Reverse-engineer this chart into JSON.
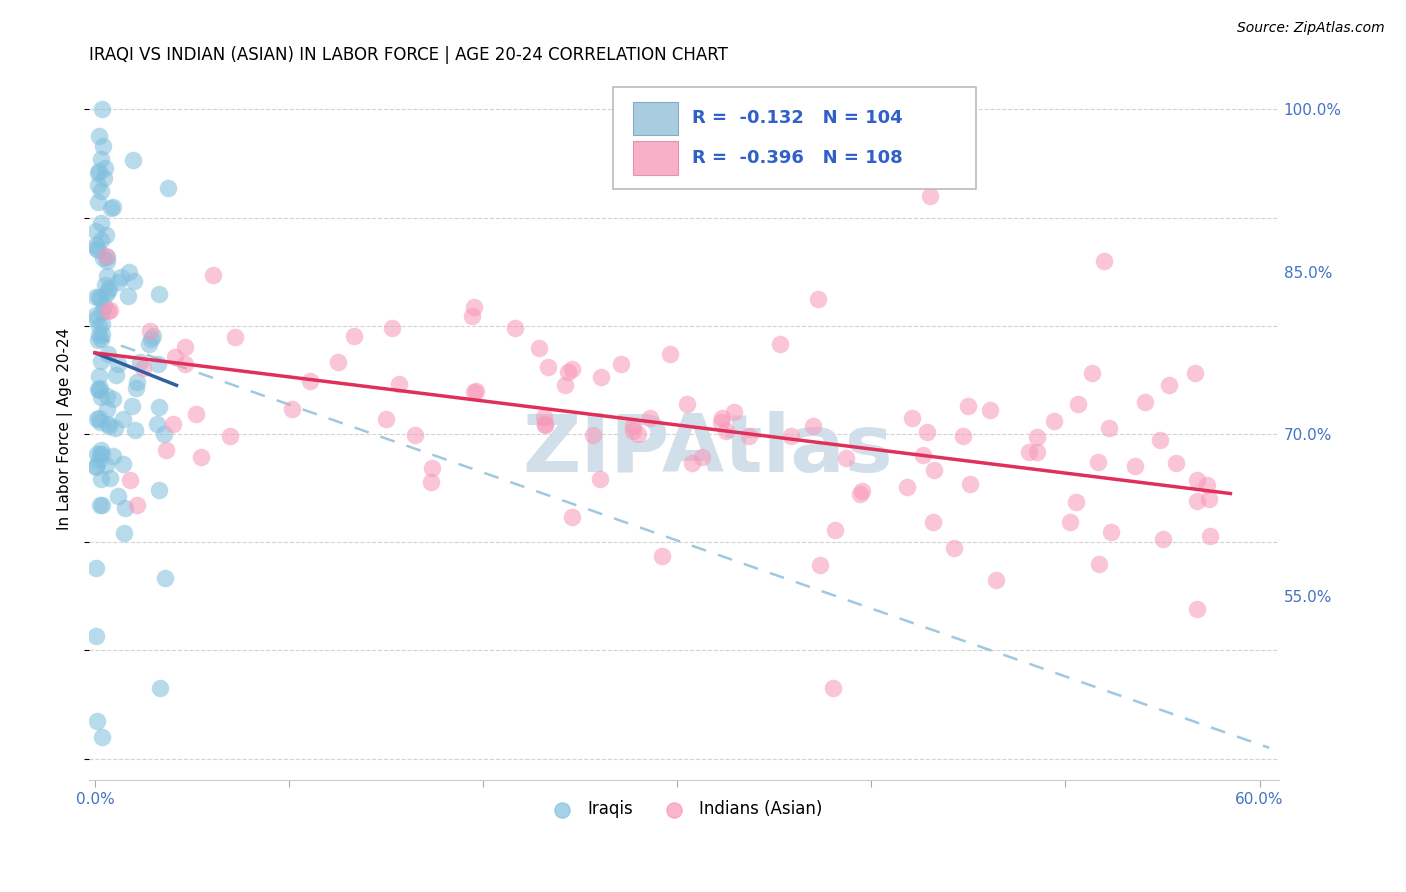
{
  "title": "IRAQI VS INDIAN (ASIAN) IN LABOR FORCE | AGE 20-24 CORRELATION CHART",
  "source": "Source: ZipAtlas.com",
  "ylabel": "In Labor Force | Age 20-24",
  "xlim": [
    -0.003,
    0.61
  ],
  "ylim": [
    0.38,
    1.03
  ],
  "ytick_vals": [
    0.55,
    0.7,
    0.85,
    1.0
  ],
  "ytick_labels": [
    "55.0%",
    "70.0%",
    "85.0%",
    "100.0%"
  ],
  "xtick_vals": [
    0.0,
    0.1,
    0.2,
    0.3,
    0.4,
    0.5,
    0.6
  ],
  "xtick_labels": [
    "0.0%",
    "",
    "",
    "",
    "",
    "",
    "60.0%"
  ],
  "iraqis_label": "Iraqis",
  "indians_label": "Indians (Asian)",
  "dot_color_iraqis": "#7fbfdd",
  "dot_color_indians": "#f896b8",
  "line_color_iraqis": "#3060a0",
  "line_color_indians": "#e0305a",
  "dashed_color": "#a0c8e0",
  "legend_box_color_1": "#a8cce0",
  "legend_box_color_2": "#f8b0c8",
  "legend_text_color": "#3060c8",
  "legend_pink_text_color": "#e0305a",
  "watermark": "ZIPAtlas",
  "watermark_color": "#ccdce8",
  "axis_color": "#4472c4",
  "grid_color": "#c8c8c8",
  "background_color": "#ffffff",
  "title_fontsize": 12,
  "axis_label_fontsize": 11,
  "tick_fontsize": 11,
  "legend_fontsize": 13,
  "source_fontsize": 10,
  "iraqis_trend_x": [
    0.0,
    0.042
  ],
  "iraqis_trend_y": [
    0.775,
    0.745
  ],
  "indians_trend_x": [
    0.0,
    0.585
  ],
  "indians_trend_y": [
    0.775,
    0.645
  ],
  "dashed_trend_x": [
    0.0,
    0.605
  ],
  "dashed_trend_y": [
    0.79,
    0.41
  ]
}
